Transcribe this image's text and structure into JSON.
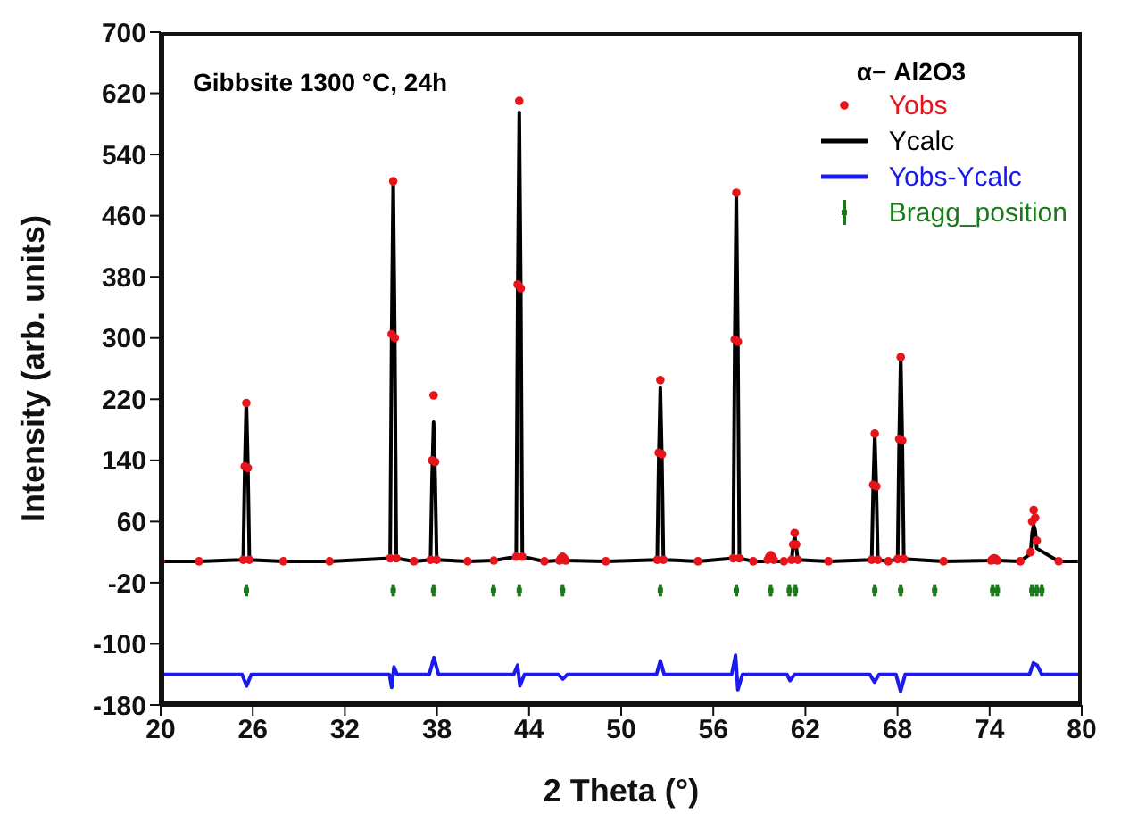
{
  "chart_data": {
    "type": "scatter",
    "xlabel": "2 Theta (°)",
    "ylabel": "Intensity (arb. units)",
    "legend_title": "α− Al2O3",
    "annotations": [
      "Gibbsite 1300 °C, 24h"
    ],
    "xlim": [
      20,
      80
    ],
    "xticks": [
      20,
      26,
      32,
      38,
      44,
      50,
      56,
      62,
      68,
      74,
      80
    ],
    "ylim": [
      -180,
      700
    ],
    "yticks": [
      -180,
      -100,
      -20,
      60,
      140,
      220,
      300,
      380,
      460,
      540,
      620,
      700
    ],
    "grid": false,
    "legend": "top right",
    "series": [
      {
        "name": "Yobs",
        "marker": "circle",
        "color": "#e8141c",
        "x": [
          20,
          22.5,
          25.38,
          25.48,
          25.58,
          25.68,
          25.78,
          28,
          31,
          34.95,
          35.05,
          35.15,
          35.25,
          35.35,
          36.5,
          37.58,
          37.68,
          37.78,
          37.88,
          37.98,
          40,
          41.7,
          43.16,
          43.26,
          43.36,
          43.46,
          43.56,
          45,
          45.98,
          46.08,
          46.18,
          46.28,
          46.38,
          49,
          52.35,
          52.45,
          52.55,
          52.65,
          52.75,
          55,
          57.3,
          57.4,
          57.5,
          57.6,
          57.7,
          58.6,
          59.54,
          59.64,
          59.74,
          59.84,
          59.94,
          60.6,
          61.1,
          61.2,
          61.3,
          61.4,
          61.5,
          63.5,
          66.32,
          66.42,
          66.52,
          66.62,
          66.72,
          67.4,
          68.01,
          68.11,
          68.21,
          68.31,
          68.41,
          71,
          74.1,
          74.2,
          74.3,
          74.4,
          74.5,
          76,
          76.67,
          76.77,
          76.87,
          76.97,
          77.07,
          78.5,
          80
        ],
        "values": [
          8,
          8,
          10,
          132,
          215,
          130,
          10,
          8,
          8,
          12,
          305,
          505,
          300,
          12,
          8,
          10,
          140,
          225,
          138,
          10,
          8,
          9,
          14,
          370,
          610,
          365,
          14,
          8,
          9,
          12,
          14,
          12,
          9,
          8,
          10,
          150,
          245,
          148,
          10,
          8,
          12,
          298,
          490,
          295,
          12,
          8,
          10,
          14,
          16,
          14,
          10,
          8,
          10,
          30,
          45,
          30,
          10,
          8,
          10,
          108,
          175,
          106,
          10,
          8,
          11,
          168,
          275,
          166,
          11,
          8,
          9,
          11,
          12,
          11,
          9,
          8,
          20,
          60,
          75,
          65,
          35,
          8,
          8
        ]
      },
      {
        "name": "Ycalc",
        "type": "line",
        "line_style": "solid",
        "color": "#000000",
        "x": [
          20,
          22.5,
          25.38,
          25.48,
          25.58,
          25.68,
          25.78,
          28,
          31,
          34.95,
          35.05,
          35.15,
          35.25,
          35.35,
          36.5,
          37.58,
          37.68,
          37.78,
          37.88,
          37.98,
          40,
          41.7,
          43.16,
          43.26,
          43.36,
          43.46,
          43.56,
          45,
          45.98,
          46.08,
          46.18,
          46.28,
          46.38,
          49,
          52.35,
          52.45,
          52.55,
          52.65,
          52.75,
          55,
          57.3,
          57.4,
          57.5,
          57.6,
          57.7,
          58.6,
          59.54,
          59.64,
          59.74,
          59.84,
          59.94,
          60.6,
          61.1,
          61.2,
          61.3,
          61.4,
          61.5,
          63.5,
          66.32,
          66.42,
          66.52,
          66.62,
          66.72,
          67.4,
          68.01,
          68.11,
          68.21,
          68.31,
          68.41,
          71,
          74.1,
          74.2,
          74.3,
          74.4,
          74.5,
          76,
          76.67,
          76.77,
          76.87,
          76.97,
          77.07,
          78.5,
          80
        ],
        "values": [
          8,
          8,
          10,
          132,
          218,
          132,
          10,
          8,
          8,
          12,
          306,
          505,
          306,
          12,
          8,
          10,
          117,
          190,
          117,
          10,
          8,
          9,
          14,
          360,
          595,
          360,
          14,
          8,
          9,
          13,
          16,
          13,
          9,
          8,
          10,
          144,
          235,
          144,
          10,
          8,
          12,
          297,
          490,
          297,
          12,
          8,
          8,
          9,
          10,
          9,
          8,
          8,
          10,
          28,
          42,
          28,
          10,
          8,
          10,
          106,
          172,
          106,
          10,
          8,
          11,
          168,
          275,
          168,
          11,
          8,
          9,
          11,
          12,
          11,
          9,
          8,
          18,
          45,
          55,
          48,
          25,
          8,
          8
        ]
      },
      {
        "name": "Yobs-Ycalc",
        "type": "line",
        "line_style": "solid",
        "color": "#1a1aee",
        "x": [
          20,
          25.3,
          25.6,
          25.9,
          34.9,
          35.05,
          35.2,
          35.4,
          37.5,
          37.8,
          38.1,
          43.0,
          43.25,
          43.4,
          43.7,
          45.9,
          46.2,
          46.5,
          52.3,
          52.55,
          52.8,
          57.2,
          57.45,
          57.6,
          57.9,
          60.8,
          61.0,
          61.3,
          66.2,
          66.5,
          66.8,
          67.9,
          68.2,
          68.5,
          76.6,
          76.85,
          77.1,
          77.4,
          80
        ],
        "values": [
          -140,
          -140,
          -155,
          -140,
          -140,
          -157,
          -130,
          -140,
          -140,
          -118,
          -140,
          -140,
          -128,
          -155,
          -140,
          -140,
          -146,
          -140,
          -140,
          -122,
          -140,
          -140,
          -115,
          -160,
          -140,
          -140,
          -148,
          -140,
          -140,
          -150,
          -140,
          -140,
          -162,
          -140,
          -140,
          -125,
          -128,
          -140,
          -140
        ]
      },
      {
        "name": "Bragg_position",
        "marker": "square",
        "color": "#1a7a1a",
        "x": [
          25.58,
          35.15,
          37.78,
          41.68,
          43.36,
          46.18,
          52.55,
          57.5,
          59.74,
          60.95,
          61.35,
          66.52,
          68.21,
          70.42,
          74.2,
          74.5,
          76.75,
          77.07,
          77.4
        ],
        "values": [
          -30,
          -30,
          -30,
          -30,
          -30,
          -30,
          -30,
          -30,
          -30,
          -30,
          -30,
          -30,
          -30,
          -30,
          -30,
          -30,
          -30,
          -30,
          -30
        ],
        "errors": [
          8,
          8,
          8,
          8,
          8,
          8,
          8,
          8,
          8,
          8,
          8,
          8,
          8,
          8,
          8,
          8,
          8,
          8,
          8
        ]
      }
    ]
  }
}
